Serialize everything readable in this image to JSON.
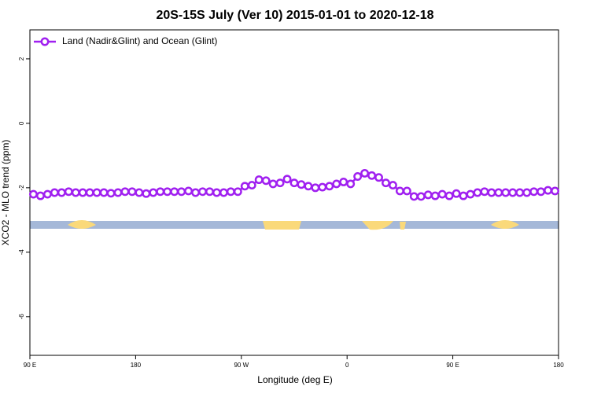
{
  "chart_data": {
    "type": "line",
    "title": "20S-15S July (Ver 10)   2015-01-01 to 2020-12-18",
    "x_label": "Longitude (deg E)",
    "y_label": "XCO2 - MLO trend (ppm)",
    "legend": "top-left",
    "xlim": [
      90,
      540
    ],
    "ylim": [
      -7.2,
      2.9
    ],
    "xticks": [
      {
        "value": 90,
        "label": "90 E"
      },
      180,
      {
        "value": 270,
        "label": "90 W"
      },
      {
        "value": 360,
        "label": "0"
      },
      {
        "value": 450,
        "label": "90 E"
      },
      {
        "value": 540,
        "label": "180"
      }
    ],
    "yticks": [
      -6,
      -4,
      -2,
      0,
      2
    ],
    "x": [
      93,
      99,
      105,
      111,
      117,
      123,
      129,
      135,
      141,
      147,
      153,
      159,
      165,
      171,
      177,
      183,
      189,
      195,
      201,
      207,
      213,
      219,
      225,
      231,
      237,
      243,
      249,
      255,
      261,
      267,
      273,
      279,
      285,
      291,
      297,
      303,
      309,
      315,
      321,
      327,
      333,
      339,
      345,
      351,
      357,
      363,
      369,
      375,
      381,
      387,
      393,
      399,
      405,
      411,
      417,
      423,
      429,
      435,
      441,
      447,
      453,
      459,
      465,
      471,
      477,
      483,
      489,
      495,
      501,
      507,
      513,
      519,
      525,
      531,
      537
    ],
    "series": [
      {
        "name": "Land (Nadir&Glint) and Ocean (Glint)",
        "color": "#a020f0",
        "values": [
          -2.2,
          -2.25,
          -2.2,
          -2.15,
          -2.15,
          -2.12,
          -2.15,
          -2.15,
          -2.15,
          -2.15,
          -2.15,
          -2.17,
          -2.15,
          -2.12,
          -2.12,
          -2.15,
          -2.18,
          -2.15,
          -2.12,
          -2.12,
          -2.12,
          -2.12,
          -2.1,
          -2.15,
          -2.12,
          -2.12,
          -2.15,
          -2.15,
          -2.12,
          -2.12,
          -1.95,
          -1.92,
          -1.75,
          -1.78,
          -1.88,
          -1.85,
          -1.73,
          -1.85,
          -1.9,
          -1.95,
          -2.0,
          -1.98,
          -1.95,
          -1.88,
          -1.82,
          -1.88,
          -1.65,
          -1.55,
          -1.62,
          -1.68,
          -1.85,
          -1.92,
          -2.1,
          -2.1,
          -2.27,
          -2.27,
          -2.22,
          -2.25,
          -2.2,
          -2.25,
          -2.18,
          -2.25,
          -2.2,
          -2.15,
          -2.12,
          -2.15,
          -2.15,
          -2.15,
          -2.15,
          -2.15,
          -2.15,
          -2.12,
          -2.12,
          -2.08,
          -2.1
        ]
      }
    ]
  }
}
